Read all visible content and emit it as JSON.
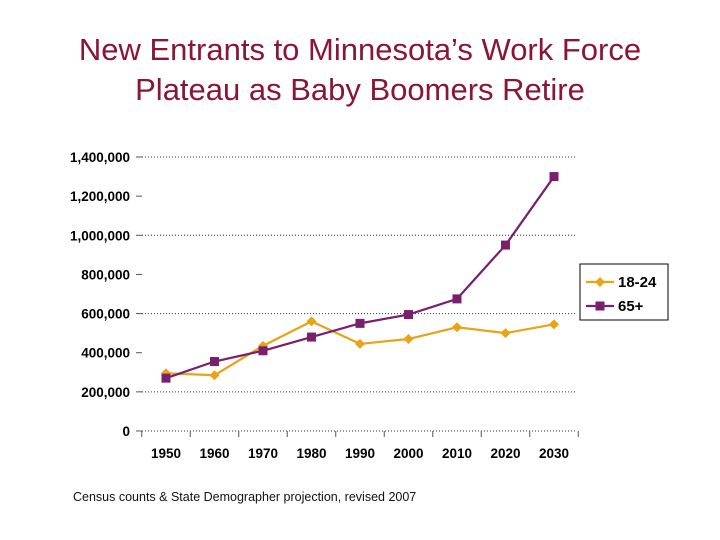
{
  "title_line1": "New Entrants to Minnesota’s Work Force",
  "title_line2": "Plateau as Baby Boomers Retire",
  "source_note": "Census counts & State Demographer projection, revised 2007",
  "colors": {
    "title": "#8a1538",
    "series_18_24": "#e8a317",
    "series_65_plus": "#7a1e6e"
  },
  "chart_data": {
    "type": "line",
    "title": "",
    "xlabel": "",
    "ylabel": "",
    "categories": [
      "1950",
      "1960",
      "1970",
      "1980",
      "1990",
      "2000",
      "2010",
      "2020",
      "2030"
    ],
    "ylim": [
      0,
      1400000
    ],
    "ytick_labels": [
      "0",
      "200,000",
      "400,000",
      "600,000",
      "800,000",
      "1,000,000",
      "1,200,000",
      "1,400,000"
    ],
    "ytick_values": [
      0,
      200000,
      400000,
      600000,
      800000,
      1000000,
      1200000,
      1400000
    ],
    "grid": "horizontal dotted",
    "legend_position": "right",
    "series": [
      {
        "name": "18-24",
        "color": "#e8a317",
        "marker": "diamond",
        "values": [
          295000,
          285000,
          435000,
          560000,
          445000,
          470000,
          530000,
          500000,
          545000
        ]
      },
      {
        "name": "65+",
        "color": "#7a1e6e",
        "marker": "square",
        "values": [
          270000,
          355000,
          410000,
          480000,
          550000,
          595000,
          675000,
          950000,
          1300000
        ]
      }
    ]
  }
}
